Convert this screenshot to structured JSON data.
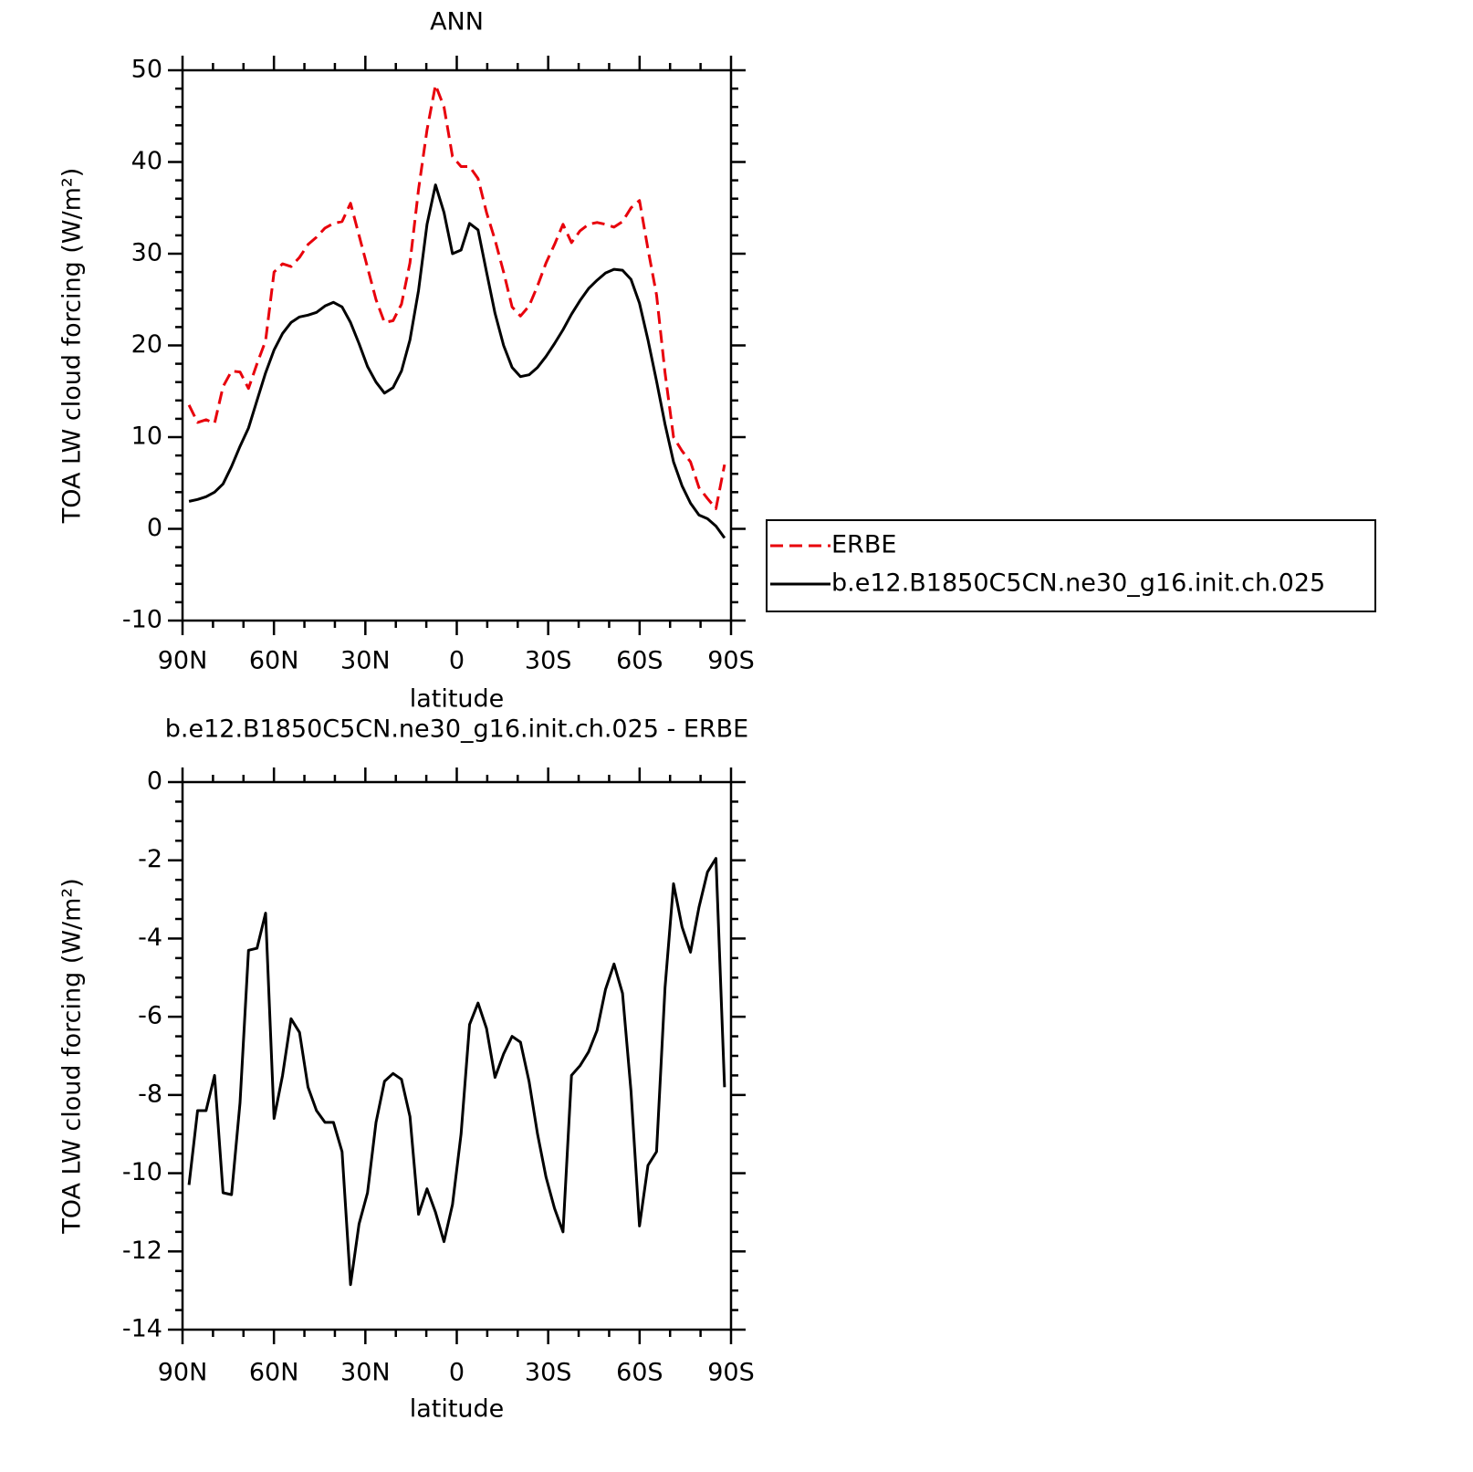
{
  "chart_data": [
    {
      "type": "line",
      "title": "ANN",
      "xlabel": "latitude",
      "ylabel": "TOA LW cloud forcing (W/m²)",
      "x": [
        87.86,
        85.07,
        82.28,
        79.49,
        76.7,
        73.92,
        71.13,
        68.34,
        65.55,
        62.76,
        59.97,
        57.18,
        54.39,
        51.6,
        48.81,
        46.03,
        43.24,
        40.45,
        37.66,
        34.87,
        32.08,
        29.29,
        26.5,
        23.71,
        20.92,
        18.14,
        15.35,
        12.56,
        9.77,
        6.98,
        4.19,
        1.4,
        -1.4,
        -4.19,
        -6.98,
        -9.77,
        -12.56,
        -15.35,
        -18.14,
        -20.92,
        -23.71,
        -26.5,
        -29.29,
        -32.08,
        -34.87,
        -37.66,
        -40.45,
        -43.24,
        -46.03,
        -48.81,
        -51.6,
        -54.39,
        -57.18,
        -59.97,
        -62.76,
        -65.55,
        -68.34,
        -71.13,
        -73.92,
        -76.7,
        -79.49,
        -82.28,
        -85.07,
        -87.86
      ],
      "series": [
        {
          "name": "ERBE",
          "color": "#e8000b",
          "linestyle": "dashed",
          "values": [
            13.5,
            11.6,
            11.9,
            11.5,
            15.5,
            17.2,
            17.1,
            15.3,
            18.0,
            20.5,
            28.0,
            28.9,
            28.6,
            29.6,
            31.0,
            31.8,
            32.8,
            33.3,
            33.5,
            35.5,
            32.0,
            28.5,
            25.0,
            22.5,
            22.7,
            24.5,
            29.0,
            37.0,
            43.5,
            48.4,
            46.0,
            40.6,
            39.5,
            39.5,
            38.2,
            34.5,
            31.5,
            28.0,
            24.2,
            23.2,
            24.3,
            26.5,
            29.0,
            31.0,
            33.2,
            31.2,
            32.5,
            33.2,
            33.4,
            33.2,
            32.9,
            33.5,
            35.0,
            35.8,
            30.5,
            25.5,
            17.0,
            10.0,
            8.5,
            7.3,
            4.5,
            3.3,
            2.2,
            7.0
          ]
        },
        {
          "name": "b.e12.B1850C5CN.ne30_g16.init.ch.025",
          "color": "#000000",
          "linestyle": "solid",
          "values": [
            3.0,
            3.2,
            3.5,
            4.0,
            4.9,
            6.8,
            9.0,
            11.0,
            14.0,
            17.0,
            19.5,
            21.3,
            22.5,
            23.1,
            23.3,
            23.6,
            24.3,
            24.7,
            24.2,
            22.5,
            20.2,
            17.7,
            16.0,
            14.8,
            15.4,
            17.2,
            20.6,
            26.0,
            33.2,
            37.5,
            34.5,
            30.0,
            30.4,
            33.3,
            32.6,
            28.0,
            23.5,
            20.0,
            17.6,
            16.6,
            16.8,
            17.6,
            18.8,
            20.2,
            21.7,
            23.4,
            24.9,
            26.2,
            27.1,
            27.9,
            28.3,
            28.2,
            27.2,
            24.6,
            20.6,
            16.1,
            11.4,
            7.3,
            4.7,
            2.8,
            1.5,
            1.1,
            0.3,
            -1.0
          ]
        }
      ],
      "xlim": [
        90,
        -90
      ],
      "xticks": [
        {
          "value": 90,
          "label": "90N"
        },
        {
          "value": 60,
          "label": "60N"
        },
        {
          "value": 30,
          "label": "30N"
        },
        0,
        {
          "value": -30,
          "label": "30S"
        },
        {
          "value": -60,
          "label": "60S"
        },
        {
          "value": -90,
          "label": "90S"
        }
      ],
      "ylim": [
        -10,
        50
      ],
      "yticks": [
        -10,
        0,
        10,
        20,
        30,
        40,
        50
      ],
      "legend": "right"
    },
    {
      "type": "line",
      "title": "b.e12.B1850C5CN.ne30_g16.init.ch.025 - ERBE",
      "xlabel": "latitude",
      "ylabel": "TOA LW cloud forcing (W/m²)",
      "x": [
        87.86,
        85.07,
        82.28,
        79.49,
        76.7,
        73.92,
        71.13,
        68.34,
        65.55,
        62.76,
        59.97,
        57.18,
        54.39,
        51.6,
        48.81,
        46.03,
        43.24,
        40.45,
        37.66,
        34.87,
        32.08,
        29.29,
        26.5,
        23.71,
        20.92,
        18.14,
        15.35,
        12.56,
        9.77,
        6.98,
        4.19,
        1.4,
        -1.4,
        -4.19,
        -6.98,
        -9.77,
        -12.56,
        -15.35,
        -18.14,
        -20.92,
        -23.71,
        -26.5,
        -29.29,
        -32.08,
        -34.87,
        -37.66,
        -40.45,
        -43.24,
        -46.03,
        -48.81,
        -51.6,
        -54.39,
        -57.18,
        -59.97,
        -62.76,
        -65.55,
        -68.34,
        -71.13,
        -73.92,
        -76.7,
        -79.49,
        -82.28,
        -85.07,
        -87.86
      ],
      "series": [
        {
          "color": "#000000",
          "linestyle": "solid",
          "values": [
            -10.3,
            -8.4,
            -8.4,
            -7.5,
            -10.5,
            -10.55,
            -8.2,
            -4.3,
            -4.25,
            -3.35,
            -8.6,
            -7.5,
            -6.05,
            -6.4,
            -7.8,
            -8.4,
            -8.7,
            -8.7,
            -9.45,
            -12.85,
            -11.3,
            -10.5,
            -8.7,
            -7.65,
            -7.45,
            -7.6,
            -8.55,
            -11.05,
            -10.4,
            -11.0,
            -11.75,
            -10.8,
            -9.0,
            -6.2,
            -5.65,
            -6.3,
            -7.55,
            -6.95,
            -6.5,
            -6.65,
            -7.65,
            -9.0,
            -10.1,
            -10.9,
            -11.5,
            -7.5,
            -7.25,
            -6.9,
            -6.35,
            -5.3,
            -4.65,
            -5.4,
            -7.9,
            -11.35,
            -9.8,
            -9.45,
            -5.25,
            -2.6,
            -3.7,
            -4.35,
            -3.2,
            -2.3,
            -1.95,
            -7.8
          ]
        }
      ],
      "xlim": [
        90,
        -90
      ],
      "xticks": [
        {
          "value": 90,
          "label": "90N"
        },
        {
          "value": 60,
          "label": "60N"
        },
        {
          "value": 30,
          "label": "30N"
        },
        0,
        {
          "value": -30,
          "label": "30S"
        },
        {
          "value": -60,
          "label": "60S"
        },
        {
          "value": -90,
          "label": "90S"
        }
      ],
      "ylim": [
        -14,
        0
      ],
      "yticks": [
        -14,
        -12,
        -10,
        -8,
        -6,
        -4,
        -2,
        0
      ]
    }
  ]
}
